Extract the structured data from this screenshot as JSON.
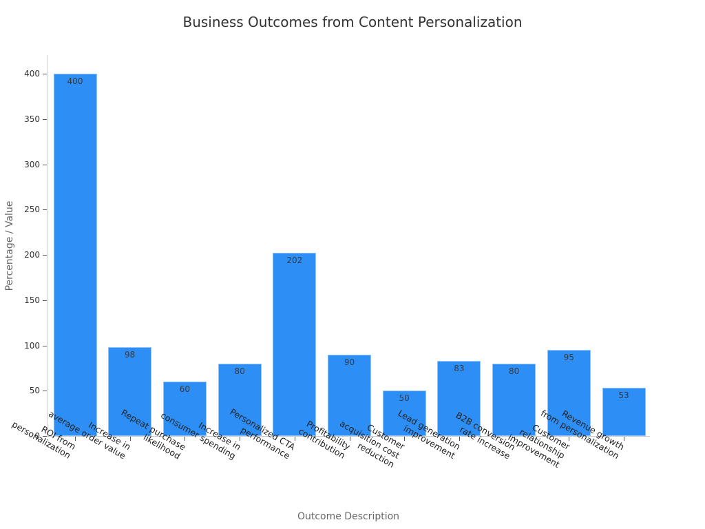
{
  "chart_data": {
    "type": "bar",
    "title": "Business Outcomes from Content Personalization",
    "xlabel": "Outcome Description",
    "ylabel": "Percentage / Value",
    "ylim": [
      0,
      420
    ],
    "yticks": [
      0,
      50,
      100,
      150,
      200,
      250,
      300,
      350,
      400
    ],
    "grid": false,
    "legend": null,
    "bar_color": "#2d8ff5",
    "categories": [
      "ROI from personalization",
      "Increase in average order value",
      "Repeat purchase likelihood",
      "Increase in consumer spending",
      "Personalized CTA performance",
      "Profitability contribution",
      "Customer acquisition cost reduction",
      "Lead generation improvement",
      "B2B conversion rate increase",
      "Customer relationship improvement",
      "Revenue growth from personalization"
    ],
    "category_labels_wrapped": [
      "ROI from\npersonalization",
      "Increase in\naverage order value",
      "Repeat purchase\nlikelihood",
      "Increase in\nconsumer spending",
      "Personalized CTA\nperformance",
      "Profitability\ncontribution",
      "Customer\nacquisition cost\nreduction",
      "Lead generation\nimprovement",
      "B2B conversion\nrate increase",
      "Customer\nrelationship\nimprovement",
      "Revenue growth\nfrom personalization"
    ],
    "values": [
      400,
      98,
      60,
      80,
      202,
      90,
      50,
      83,
      80,
      95,
      53
    ]
  }
}
